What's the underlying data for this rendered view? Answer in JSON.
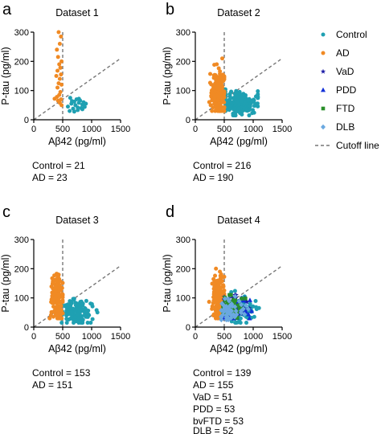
{
  "figure": {
    "panel_letters": [
      "a",
      "b",
      "c",
      "d"
    ],
    "counts": [
      [
        "Control = 21",
        "AD = 23"
      ],
      [
        "Control = 216",
        "AD = 190"
      ],
      [
        "Control = 153",
        "AD = 151"
      ],
      [
        "Control = 139",
        "AD = 155",
        "VaD =  51",
        "PDD = 53",
        "bvFTD = 53",
        "DLB = 52"
      ]
    ]
  },
  "legend": {
    "items": [
      {
        "label": "Control",
        "marker": "circle",
        "color": "#1fa0b2"
      },
      {
        "label": "AD",
        "marker": "circle",
        "color": "#f08a24"
      },
      {
        "label": "VaD",
        "marker": "star",
        "color": "#1a1aa6"
      },
      {
        "label": "PDD",
        "marker": "triangle",
        "color": "#1230d8"
      },
      {
        "label": "FTD",
        "marker": "square",
        "color": "#2a8f2a"
      },
      {
        "label": "DLB",
        "marker": "diamond",
        "color": "#6aa8e0"
      },
      {
        "label": "Cutoff line",
        "marker": "dashed-line",
        "color": "#777777"
      }
    ]
  },
  "chart_data": [
    {
      "type": "scatter",
      "title": "Dataset 1",
      "xlabel": "Aβ42 (pg/ml)",
      "ylabel": "P-tau (pg/ml)",
      "xlim": [
        0,
        1500
      ],
      "ylim": [
        0,
        300
      ],
      "xticks": [
        "0",
        "500",
        "1000",
        "1500"
      ],
      "yticks": [
        "0",
        "100",
        "200",
        "300"
      ],
      "cutoff": {
        "vertical_x": 500,
        "diagonal": [
          [
            0,
            0
          ],
          [
            1500,
            210
          ]
        ]
      },
      "series": [
        {
          "name": "Control",
          "color": "#1fa0b2",
          "marker": "circle",
          "points": [
            [
              590,
              45
            ],
            [
              630,
              75
            ],
            [
              650,
              55
            ],
            [
              680,
              38
            ],
            [
              700,
              62
            ],
            [
              720,
              50
            ],
            [
              740,
              70
            ],
            [
              760,
              42
            ],
            [
              780,
              58
            ],
            [
              800,
              66
            ],
            [
              820,
              40
            ],
            [
              840,
              52
            ],
            [
              860,
              60
            ],
            [
              880,
              44
            ],
            [
              900,
              55
            ],
            [
              620,
              30
            ],
            [
              700,
              28
            ],
            [
              760,
              33
            ],
            [
              840,
              36
            ],
            [
              660,
              64
            ],
            [
              780,
              72
            ]
          ]
        },
        {
          "name": "AD",
          "color": "#f08a24",
          "marker": "circle",
          "points": [
            [
              430,
              300
            ],
            [
              470,
              285
            ],
            [
              450,
              260
            ],
            [
              400,
              240
            ],
            [
              420,
              215
            ],
            [
              480,
              200
            ],
            [
              440,
              190
            ],
            [
              460,
              178
            ],
            [
              410,
              168
            ],
            [
              470,
              155
            ],
            [
              390,
              150
            ],
            [
              450,
              140
            ],
            [
              430,
              125
            ],
            [
              480,
              120
            ],
            [
              410,
              110
            ],
            [
              460,
              95
            ],
            [
              440,
              85
            ],
            [
              400,
              78
            ],
            [
              470,
              70
            ],
            [
              420,
              65
            ],
            [
              450,
              58
            ],
            [
              360,
              72
            ],
            [
              480,
              50
            ]
          ]
        }
      ]
    },
    {
      "type": "scatter",
      "title": "Dataset 2",
      "xlabel": "Aβ42 (pg/ml)",
      "ylabel": "P-tau (pg/ml)",
      "xlim": [
        0,
        1500
      ],
      "ylim": [
        0,
        300
      ],
      "xticks": [
        "0",
        "500",
        "1000",
        "1500"
      ],
      "yticks": [
        "0",
        "100",
        "200",
        "300"
      ],
      "cutoff": {
        "vertical_x": 500,
        "diagonal": [
          [
            0,
            0
          ],
          [
            1500,
            210
          ]
        ]
      },
      "series": [
        {
          "name": "Control",
          "color": "#1fa0b2",
          "marker": "circle",
          "n": 216,
          "center": [
            780,
            55
          ],
          "spread": [
            150,
            20
          ],
          "x_range": [
            520,
            1080
          ],
          "y_range": [
            15,
            130
          ]
        },
        {
          "name": "AD",
          "color": "#f08a24",
          "marker": "circle",
          "n": 190,
          "center": [
            400,
            95
          ],
          "spread": [
            60,
            40
          ],
          "x_range": [
            200,
            500
          ],
          "y_range": [
            30,
            210
          ]
        }
      ]
    },
    {
      "type": "scatter",
      "title": "Dataset 3",
      "xlabel": "Aβ42 (pg/ml)",
      "ylabel": "P-tau (pg/ml)",
      "xlim": [
        0,
        1500
      ],
      "ylim": [
        0,
        300
      ],
      "xticks": [
        "0",
        "500",
        "1000",
        "1500"
      ],
      "yticks": [
        "0",
        "100",
        "200",
        "300"
      ],
      "cutoff": {
        "vertical_x": 500,
        "diagonal": [
          [
            0,
            0
          ],
          [
            1500,
            210
          ]
        ]
      },
      "series": [
        {
          "name": "Control",
          "color": "#1fa0b2",
          "marker": "circle",
          "n": 153,
          "center": [
            740,
            50
          ],
          "spread": [
            140,
            20
          ],
          "x_range": [
            480,
            1100
          ],
          "y_range": [
            15,
            110
          ]
        },
        {
          "name": "AD",
          "color": "#f08a24",
          "marker": "circle",
          "n": 151,
          "center": [
            400,
            100
          ],
          "spread": [
            55,
            45
          ],
          "x_range": [
            150,
            500
          ],
          "y_range": [
            30,
            260
          ]
        }
      ]
    },
    {
      "type": "scatter",
      "title": "Dataset 4",
      "xlabel": "Aβ42 (pg/ml)",
      "ylabel": "P-tau (pg/ml)",
      "xlim": [
        0,
        1500
      ],
      "ylim": [
        0,
        300
      ],
      "xticks": [
        "0",
        "500",
        "1000",
        "1500"
      ],
      "yticks": [
        "0",
        "100",
        "200",
        "300"
      ],
      "cutoff": {
        "vertical_x": 500,
        "diagonal": [
          [
            0,
            0
          ],
          [
            1500,
            210
          ]
        ]
      },
      "series": [
        {
          "name": "Control",
          "color": "#1fa0b2",
          "marker": "circle",
          "n": 139,
          "center": [
            740,
            60
          ],
          "spread": [
            140,
            20
          ],
          "x_range": [
            480,
            1100
          ],
          "y_range": [
            15,
            130
          ]
        },
        {
          "name": "AD",
          "color": "#f08a24",
          "marker": "circle",
          "n": 155,
          "center": [
            400,
            100
          ],
          "spread": [
            55,
            45
          ],
          "x_range": [
            150,
            500
          ],
          "y_range": [
            30,
            260
          ]
        },
        {
          "name": "VaD",
          "color": "#1a1aa6",
          "marker": "star",
          "n": 51,
          "center": [
            680,
            65
          ],
          "spread": [
            150,
            20
          ],
          "x_range": [
            500,
            1000
          ],
          "y_range": [
            30,
            110
          ]
        },
        {
          "name": "PDD",
          "color": "#1230d8",
          "marker": "triangle",
          "n": 53,
          "center": [
            700,
            60
          ],
          "spread": [
            150,
            20
          ],
          "x_range": [
            500,
            1000
          ],
          "y_range": [
            30,
            100
          ]
        },
        {
          "name": "FTD",
          "color": "#2a8f2a",
          "marker": "square",
          "n": 53,
          "center": [
            620,
            70
          ],
          "spread": [
            120,
            20
          ],
          "x_range": [
            480,
            950
          ],
          "y_range": [
            30,
            110
          ]
        },
        {
          "name": "DLB",
          "color": "#6aa8e0",
          "marker": "diamond",
          "n": 52,
          "center": [
            620,
            60
          ],
          "spread": [
            130,
            22
          ],
          "x_range": [
            450,
            1000
          ],
          "y_range": [
            25,
            110
          ]
        }
      ]
    }
  ]
}
